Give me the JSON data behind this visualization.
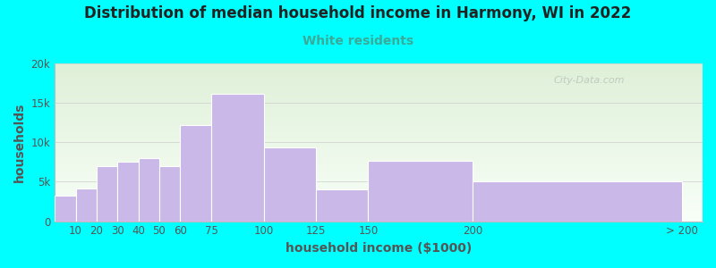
{
  "title": "Distribution of median household income in Harmony, WI in 2022",
  "subtitle": "White residents",
  "xlabel": "household income ($1000)",
  "ylabel": "households",
  "background_fig": "#00FFFF",
  "background_ax_top": "#dff0d8",
  "background_ax_bottom": "#f8fff8",
  "bar_color": "#c9b8e8",
  "bar_edgecolor": "#ffffff",
  "title_color": "#222222",
  "subtitle_color": "#3aaa99",
  "axis_label_color": "#555555",
  "tick_label_color": "#555555",
  "bin_left_edges": [
    0,
    10,
    20,
    30,
    40,
    50,
    60,
    75,
    100,
    125,
    150,
    200
  ],
  "bin_right_edges": [
    10,
    20,
    30,
    40,
    50,
    60,
    75,
    100,
    125,
    150,
    200,
    300
  ],
  "values": [
    3200,
    4200,
    7000,
    7500,
    8000,
    7000,
    12200,
    16200,
    9300,
    4000,
    7700,
    5000
  ],
  "xtick_positions": [
    10,
    20,
    30,
    40,
    50,
    60,
    75,
    100,
    125,
    150,
    200,
    300
  ],
  "xtick_labels": [
    "10",
    "20",
    "30",
    "40",
    "50",
    "60",
    "75",
    "100",
    "125",
    "150",
    "200",
    "> 200"
  ],
  "xlim": [
    0,
    310
  ],
  "ylim": [
    0,
    20000
  ],
  "yticks": [
    0,
    5000,
    10000,
    15000,
    20000
  ],
  "ytick_labels": [
    "0",
    "5k",
    "10k",
    "15k",
    "20k"
  ],
  "watermark": "City-Data.com",
  "title_fontsize": 12,
  "subtitle_fontsize": 10,
  "axis_label_fontsize": 10,
  "tick_fontsize": 8.5
}
